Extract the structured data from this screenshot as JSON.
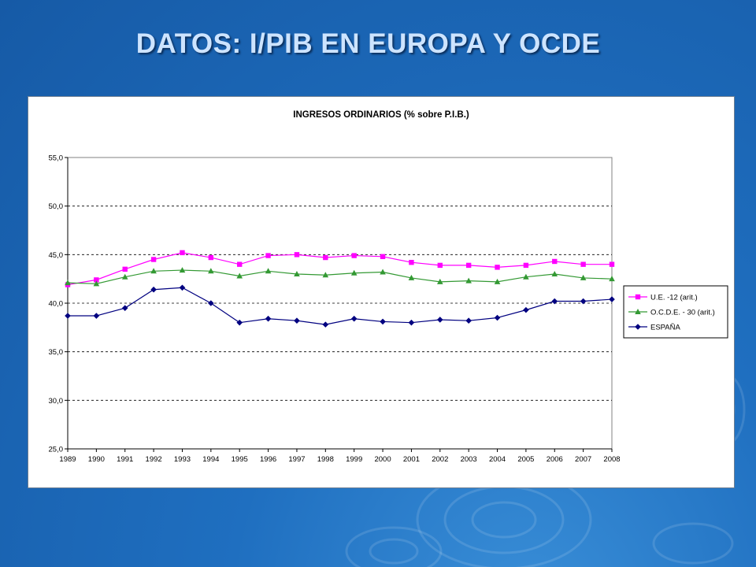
{
  "slide": {
    "title": "DATOS: I/PIB EN EUROPA Y OCDE"
  },
  "colors": {
    "background": "#1f6fc0",
    "title": "#cde4ff"
  },
  "chart_data": {
    "type": "line",
    "title": "INGRESOS ORDINARIOS (% sobre P.I.B.)",
    "xlabel": "",
    "ylabel": "",
    "ylim": [
      25,
      55
    ],
    "grid": true,
    "legend_position": "right",
    "categories": [
      "1989",
      "1990",
      "1991",
      "1992",
      "1993",
      "1994",
      "1995",
      "1996",
      "1997",
      "1998",
      "1999",
      "2000",
      "2001",
      "2002",
      "2003",
      "2004",
      "2005",
      "2006",
      "2007",
      "2008"
    ],
    "y_ticks": [
      "25,0",
      "30,0",
      "35,0",
      "40,0",
      "45,0",
      "50,0",
      "55,0"
    ],
    "series": [
      {
        "name": "U.E. -12 (arit.)",
        "color": "#ff00ff",
        "marker": "square",
        "values": [
          41.9,
          42.4,
          43.5,
          44.5,
          45.2,
          44.7,
          44.0,
          44.9,
          45.0,
          44.7,
          44.9,
          44.8,
          44.2,
          43.9,
          43.9,
          43.7,
          43.9,
          44.3,
          44.0,
          44.0
        ]
      },
      {
        "name": "O.C.D.E. - 30 (arit.)",
        "color": "#339933",
        "marker": "triangle",
        "values": [
          42.1,
          42.0,
          42.7,
          43.3,
          43.4,
          43.3,
          42.8,
          43.3,
          43.0,
          42.9,
          43.1,
          43.2,
          42.6,
          42.2,
          42.3,
          42.2,
          42.7,
          43.0,
          42.6,
          42.5
        ]
      },
      {
        "name": "ESPAÑA",
        "color": "#000080",
        "marker": "diamond",
        "values": [
          38.7,
          38.7,
          39.5,
          41.4,
          41.6,
          40.0,
          38.0,
          38.4,
          38.2,
          37.8,
          38.4,
          38.1,
          38.0,
          38.3,
          38.2,
          38.5,
          39.3,
          40.2,
          40.2,
          40.4
        ]
      }
    ]
  }
}
